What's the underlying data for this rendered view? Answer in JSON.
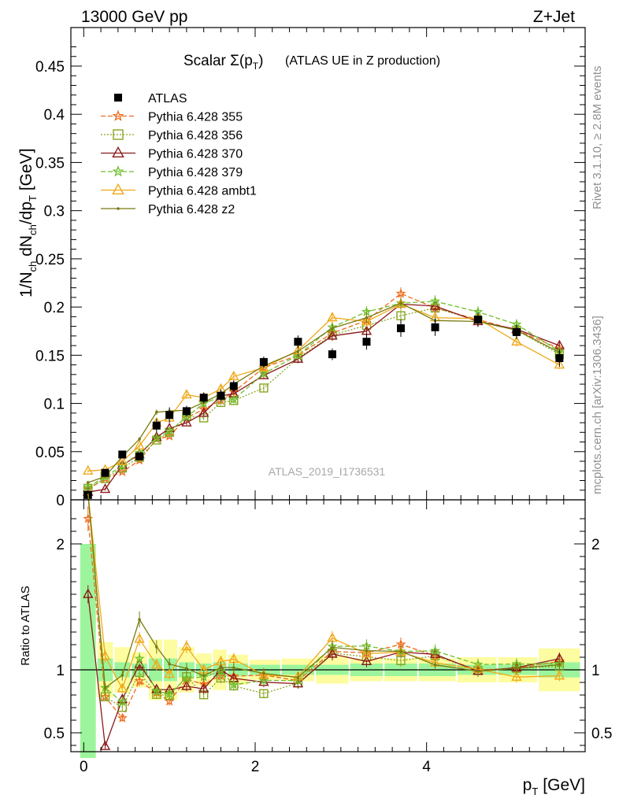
{
  "header": {
    "left": "13000 GeV pp",
    "right": "Z+Jet"
  },
  "chart_data": {
    "type": "line",
    "title": "Scalar Σ(p",
    "title_sub": "T",
    "title_tail": ")",
    "subtitle": "(ATLAS UE in Z production)",
    "analysis_label": "ATLAS_2019_I1736531",
    "side_label_top": "Rivet 3.1.10, ≥ 2.8M events",
    "side_label_bottom": "mcplots.cern.ch [arXiv:1306.3436]",
    "ylabel_main": "1/N",
    "ylabel_ratio": "Ratio to ATLAS",
    "xlabel": "p",
    "xlabel_sub": "T",
    "xlabel_unit": "[GeV]",
    "xlim": [
      -0.15,
      5.85
    ],
    "ylim_main": [
      0,
      0.49
    ],
    "ylim_ratio": [
      0.35,
      2.35
    ],
    "x_ticks": [
      0,
      2,
      4
    ],
    "x_tick_labels": [
      "0",
      "2",
      "4"
    ],
    "y_ticks_main": [
      0,
      0.05,
      0.1,
      0.15,
      0.2,
      0.25,
      0.3,
      0.35,
      0.4,
      0.45
    ],
    "y_tick_labels_main": [
      "0",
      "0.05",
      "0.1",
      "0.15",
      "0.2",
      "0.25",
      "0.3",
      "0.35",
      "0.4",
      "0.45"
    ],
    "y_ticks_ratio": [
      0.5,
      1,
      2
    ],
    "y_tick_labels_ratio": [
      "0.5",
      "1",
      "2"
    ],
    "x": [
      0.05,
      0.25,
      0.45,
      0.65,
      0.85,
      1.0,
      1.2,
      1.4,
      1.6,
      1.75,
      2.1,
      2.5,
      2.9,
      3.3,
      3.7,
      4.1,
      4.6,
      5.05,
      5.55
    ],
    "data": {
      "name": "ATLAS",
      "values": [
        0.005,
        0.028,
        0.047,
        0.045,
        0.077,
        0.088,
        0.092,
        0.106,
        0.108,
        0.118,
        0.143,
        0.164,
        0.151,
        0.164,
        0.178,
        0.179,
        0.187,
        0.174,
        0.147
      ],
      "band_inner": [
        1.0,
        0.09,
        0.06,
        0.05,
        0.09,
        0.09,
        0.06,
        0.05,
        0.06,
        0.05,
        0.04,
        0.04,
        0.04,
        0.05,
        0.05,
        0.05,
        0.04,
        0.04,
        0.06
      ],
      "band_outer": [
        1.0,
        0.22,
        0.18,
        0.14,
        0.24,
        0.24,
        0.18,
        0.13,
        0.16,
        0.12,
        0.08,
        0.09,
        0.11,
        0.09,
        0.09,
        0.09,
        0.1,
        0.1,
        0.17
      ]
    },
    "series": [
      {
        "name": "Pythia 6.428 355",
        "color": "#ee6a1a",
        "dash": "6,3",
        "marker": "star",
        "values": [
          0.011,
          0.022,
          0.029,
          0.041,
          0.063,
          0.066,
          0.085,
          0.094,
          0.103,
          0.112,
          0.137,
          0.15,
          0.173,
          0.186,
          0.214,
          0.199,
          0.187,
          0.176,
          0.157
        ]
      },
      {
        "name": "Pythia 6.428 356",
        "color": "#86a620",
        "dash": "2,2",
        "marker": "square",
        "values": [
          0.012,
          0.022,
          0.033,
          0.044,
          0.062,
          0.07,
          0.087,
          0.085,
          0.101,
          0.103,
          0.116,
          0.147,
          0.171,
          0.181,
          0.191,
          0.199,
          0.186,
          0.176,
          0.151
        ]
      },
      {
        "name": "Pythia 6.428 370",
        "color": "#8b1a1a",
        "dash": "",
        "marker": "triangle",
        "values": [
          0.008,
          0.011,
          0.036,
          0.047,
          0.065,
          0.074,
          0.08,
          0.09,
          0.108,
          0.11,
          0.129,
          0.146,
          0.17,
          0.175,
          0.203,
          0.201,
          0.185,
          0.177,
          0.16
        ]
      },
      {
        "name": "Pythia 6.428 379",
        "color": "#6fbf2a",
        "dash": "6,3",
        "marker": "star",
        "values": [
          0.013,
          0.024,
          0.035,
          0.049,
          0.064,
          0.071,
          0.086,
          0.1,
          0.107,
          0.104,
          0.131,
          0.15,
          0.179,
          0.195,
          0.204,
          0.206,
          0.195,
          0.182,
          0.154
        ]
      },
      {
        "name": "Pythia 6.428 ambt1",
        "color": "#f0a818",
        "dash": "",
        "marker": "triangle",
        "values": [
          0.03,
          0.031,
          0.04,
          0.056,
          0.08,
          0.085,
          0.109,
          0.106,
          0.115,
          0.128,
          0.137,
          0.155,
          0.189,
          0.185,
          0.203,
          0.189,
          0.188,
          0.164,
          0.14
        ]
      },
      {
        "name": "Pythia 6.428 z2",
        "color": "#7a7a10",
        "dash": "",
        "marker": "dot",
        "values": [
          0.018,
          0.024,
          0.045,
          0.063,
          0.091,
          0.092,
          0.093,
          0.101,
          0.11,
          0.12,
          0.139,
          0.154,
          0.178,
          0.189,
          0.204,
          0.186,
          0.185,
          0.176,
          0.153
        ]
      }
    ]
  }
}
